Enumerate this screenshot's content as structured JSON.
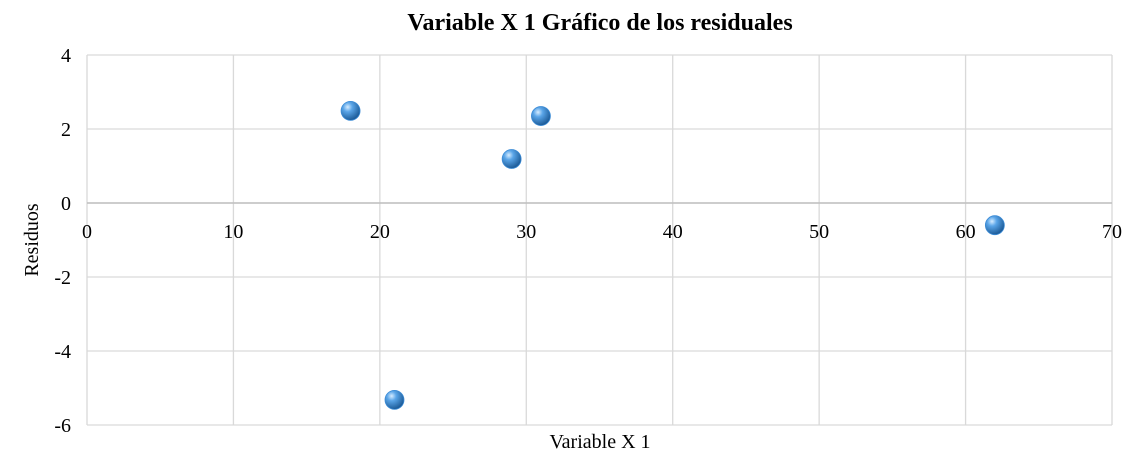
{
  "chart_data": {
    "type": "scatter",
    "title": "Variable X 1 Gráfico de los residuales",
    "x_label": "Variable X 1",
    "y_label": "Residuos",
    "series": [
      {
        "name": "Residuos",
        "color": "#3b8bd6",
        "x": [
          18,
          29,
          31,
          62,
          21
        ],
        "values": [
          2.49,
          1.19,
          2.35,
          -0.6,
          -5.32
        ]
      }
    ],
    "xlim": [
      0,
      70
    ],
    "xticks": [
      0,
      10,
      20,
      30,
      40,
      50,
      60,
      70
    ],
    "ylim": [
      -6,
      4
    ],
    "yticks": [
      -6,
      -4,
      -2,
      0,
      2,
      4
    ],
    "grid": true
  }
}
